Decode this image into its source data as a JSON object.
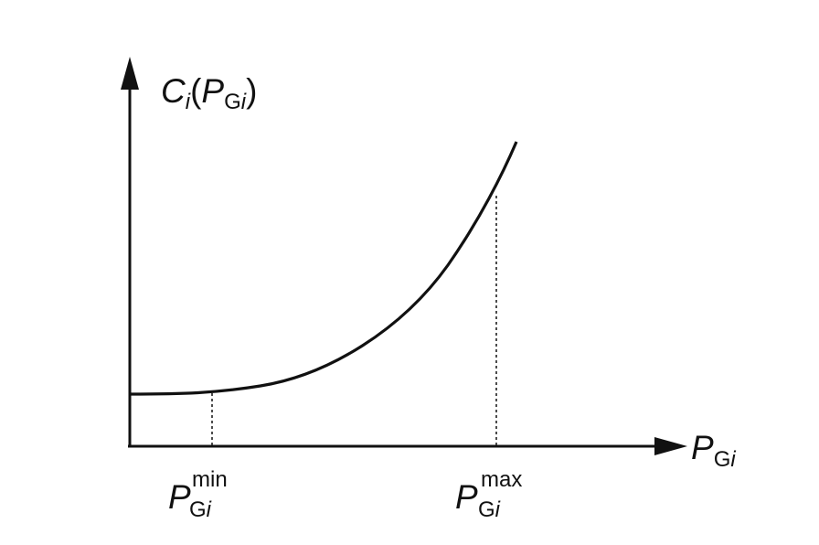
{
  "y_axis_label": {
    "main": "C",
    "sub": "i",
    "paren_open": "(",
    "inner_main": "P",
    "inner_sub_upright": "G",
    "inner_sub_italic": "i",
    "paren_close": ")"
  },
  "x_axis_label": {
    "main": "P",
    "sub_upright": "G",
    "sub_italic": "i"
  },
  "min_marker": {
    "main": "P",
    "sub_upright": "G",
    "sub_italic": "i",
    "sup": "min"
  },
  "max_marker": {
    "main": "P",
    "sub_upright": "G",
    "sub_italic": "i",
    "sup": "max"
  },
  "colors": {
    "ink": "#111111",
    "background": "#ffffff"
  }
}
